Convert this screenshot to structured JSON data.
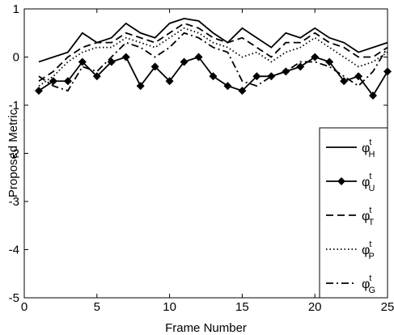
{
  "chart_data": {
    "type": "line",
    "title": "",
    "xlabel": "Frame Number",
    "ylabel": "Proposed Metric",
    "xlim": [
      0,
      25
    ],
    "ylim": [
      -5,
      1
    ],
    "xticks": [
      "0",
      "5",
      "10",
      "15",
      "20",
      "25"
    ],
    "yticks": [
      "1",
      "0",
      "-1",
      "-2",
      "-3",
      "-4",
      "-5"
    ],
    "grid": false,
    "legend_position": "right inside",
    "x": [
      1,
      2,
      3,
      4,
      5,
      6,
      7,
      8,
      9,
      10,
      11,
      12,
      13,
      14,
      15,
      16,
      17,
      18,
      19,
      20,
      21,
      22,
      23,
      24,
      25
    ],
    "series": [
      {
        "name": "H",
        "line": "solid",
        "marker": "none",
        "values": [
          -0.1,
          0.0,
          0.1,
          0.5,
          0.3,
          0.4,
          0.7,
          0.5,
          0.4,
          0.7,
          0.8,
          0.75,
          0.5,
          0.3,
          0.6,
          0.4,
          0.2,
          0.5,
          0.4,
          0.6,
          0.4,
          0.3,
          0.1,
          0.2,
          0.3
        ]
      },
      {
        "name": "U",
        "line": "solid",
        "marker": "diamond",
        "values": [
          -0.7,
          -0.5,
          -0.5,
          -0.1,
          -0.4,
          -0.1,
          0.0,
          -0.6,
          -0.2,
          -0.5,
          -0.1,
          0.0,
          -0.4,
          -0.6,
          -0.7,
          -0.4,
          -0.4,
          -0.3,
          -0.2,
          0.0,
          -0.1,
          -0.5,
          -0.4,
          -0.8,
          -0.3
        ]
      },
      {
        "name": "T",
        "line": "dashed",
        "marker": "none",
        "values": [
          -0.5,
          -0.3,
          0.0,
          0.2,
          0.3,
          0.3,
          0.5,
          0.4,
          0.3,
          0.5,
          0.7,
          0.6,
          0.4,
          0.3,
          0.4,
          0.2,
          0.0,
          0.3,
          0.3,
          0.5,
          0.3,
          0.2,
          0.0,
          0.0,
          0.2
        ]
      },
      {
        "name": "P",
        "line": "dotted",
        "marker": "none",
        "values": [
          -0.6,
          -0.4,
          -0.1,
          0.1,
          0.2,
          0.2,
          0.4,
          0.3,
          0.2,
          0.4,
          0.6,
          0.5,
          0.3,
          0.2,
          0.0,
          0.1,
          -0.1,
          0.1,
          0.2,
          0.4,
          0.2,
          0.0,
          -0.2,
          -0.1,
          0.1
        ]
      },
      {
        "name": "G",
        "line": "dash-dot",
        "marker": "none",
        "values": [
          -0.4,
          -0.6,
          -0.7,
          -0.2,
          -0.3,
          0.0,
          0.3,
          0.2,
          0.0,
          0.2,
          0.5,
          0.4,
          0.2,
          0.1,
          -0.5,
          -0.6,
          -0.4,
          -0.3,
          -0.1,
          -0.1,
          -0.2,
          -0.4,
          -0.6,
          -0.3,
          0.2
        ]
      }
    ],
    "legend": [
      {
        "series": "H",
        "symbol": "φ",
        "sup": "t",
        "sub": "H"
      },
      {
        "series": "U",
        "symbol": "φ",
        "sup": "t",
        "sub": "U"
      },
      {
        "series": "T",
        "symbol": "φ",
        "sup": "t",
        "sub": "T"
      },
      {
        "series": "P",
        "symbol": "φ",
        "sup": "t",
        "sub": "P"
      },
      {
        "series": "G",
        "symbol": "φ",
        "sup": "t",
        "sub": "G"
      }
    ]
  }
}
